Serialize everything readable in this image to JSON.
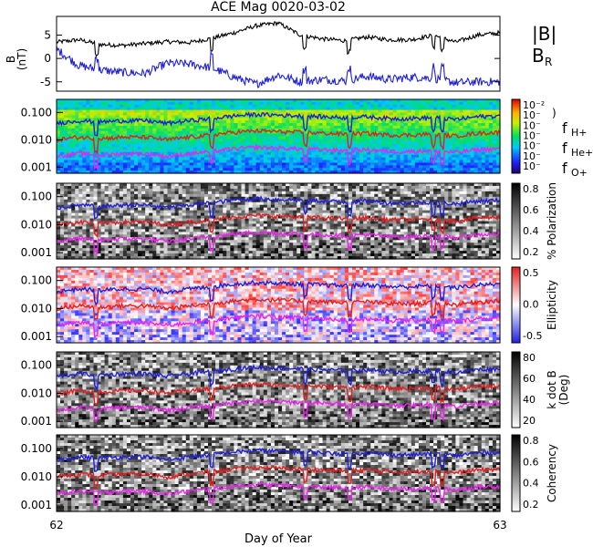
{
  "chart_data": [
    {
      "type": "line",
      "title": "ACE Mag 0020-03-02",
      "ylabel_line1": "B",
      "ylabel_line2": "(nT)",
      "yticks": [
        "5",
        "0",
        "-5"
      ],
      "ylim": [
        -7,
        9
      ],
      "xlim": [
        62,
        63
      ],
      "series": [
        {
          "name": "|B|",
          "color": "#000000",
          "x": [
            62.0,
            62.05,
            62.1,
            62.15,
            62.2,
            62.25,
            62.3,
            62.35,
            62.4,
            62.45,
            62.5,
            62.55,
            62.6,
            62.65,
            62.7,
            62.75,
            62.8,
            62.85,
            62.9,
            62.95,
            63.0
          ],
          "values": [
            3.5,
            4.0,
            3.0,
            2.8,
            3.2,
            3.6,
            3.4,
            4.3,
            5.5,
            7.0,
            7.6,
            5.0,
            4.2,
            3.8,
            4.6,
            4.0,
            4.0,
            5.0,
            3.5,
            5.0,
            5.5
          ]
        },
        {
          "name": "B_R",
          "label": "B",
          "sub": "R",
          "color": "#1f1fd6",
          "x": [
            62.0,
            62.05,
            62.1,
            62.15,
            62.2,
            62.25,
            62.3,
            62.35,
            62.4,
            62.45,
            62.5,
            62.55,
            62.6,
            62.65,
            62.7,
            62.75,
            62.8,
            62.85,
            62.9,
            62.95,
            63.0
          ],
          "values": [
            2.0,
            -1.5,
            -2.5,
            -3.0,
            -3.2,
            -1.0,
            -1.2,
            -2.0,
            -4.0,
            -5.5,
            -3.5,
            -5.0,
            -4.5,
            -4.8,
            -3.8,
            -4.5,
            -4.0,
            -4.2,
            -5.2,
            -5.0,
            -5.0
          ]
        }
      ]
    },
    {
      "type": "heatmap",
      "panel": "power",
      "yticks": [
        "0.100",
        "0.010",
        "0.001"
      ],
      "colorbar_ticks": [
        "10⁻²",
        "10⁻",
        "10⁻",
        "10⁻",
        "10⁻",
        "10⁻",
        "10⁻"
      ],
      "colorbar_label": ")",
      "legend": [
        {
          "text": "f",
          "sub": "H+",
          "color": "#1f1fd6"
        },
        {
          "text": "f",
          "sub": "He+",
          "color": "#e02020"
        },
        {
          "text": "f",
          "sub": "O+",
          "color": "#ee22ee"
        }
      ]
    },
    {
      "type": "heatmap",
      "panel": "polarization",
      "yticks": [
        "0.100",
        "0.010",
        "0.001"
      ],
      "colorbar_ticks": [
        "0.8",
        "0.6",
        "0.4",
        "0.2"
      ],
      "colorbar_label": "% Polarization"
    },
    {
      "type": "heatmap",
      "panel": "ellipticity",
      "yticks": [
        "0.100",
        "0.010",
        "0.001"
      ],
      "colorbar_ticks": [
        "0.5",
        "0.0",
        "-0.5"
      ],
      "colorbar_label": "Ellipticity"
    },
    {
      "type": "heatmap",
      "panel": "kdotb",
      "yticks": [
        "0.100",
        "0.010",
        "0.001"
      ],
      "colorbar_ticks": [
        "80",
        "60",
        "40",
        "20"
      ],
      "colorbar_label": "k dot B",
      "colorbar_label2": "(Deg)"
    },
    {
      "type": "heatmap",
      "panel": "coherency",
      "yticks": [
        "0.100",
        "0.010",
        "0.001"
      ],
      "colorbar_ticks": [
        "0.8",
        "0.6",
        "0.4",
        "0.2"
      ],
      "colorbar_label": "Coherency",
      "xticks": [
        "62",
        "63"
      ],
      "xlabel": "Day of Year"
    }
  ],
  "frequency_curves": {
    "x": [
      62.0,
      62.05,
      62.1,
      62.15,
      62.2,
      62.25,
      62.3,
      62.35,
      62.4,
      62.45,
      62.5,
      62.55,
      62.6,
      62.65,
      62.7,
      62.75,
      62.8,
      62.85,
      62.9,
      62.95,
      63.0
    ],
    "fH": [
      0.04,
      0.05,
      0.045,
      0.05,
      0.05,
      0.04,
      0.05,
      0.06,
      0.075,
      0.085,
      0.08,
      0.075,
      0.07,
      0.065,
      0.07,
      0.06,
      0.06,
      0.065,
      0.055,
      0.07,
      0.075
    ]
  }
}
